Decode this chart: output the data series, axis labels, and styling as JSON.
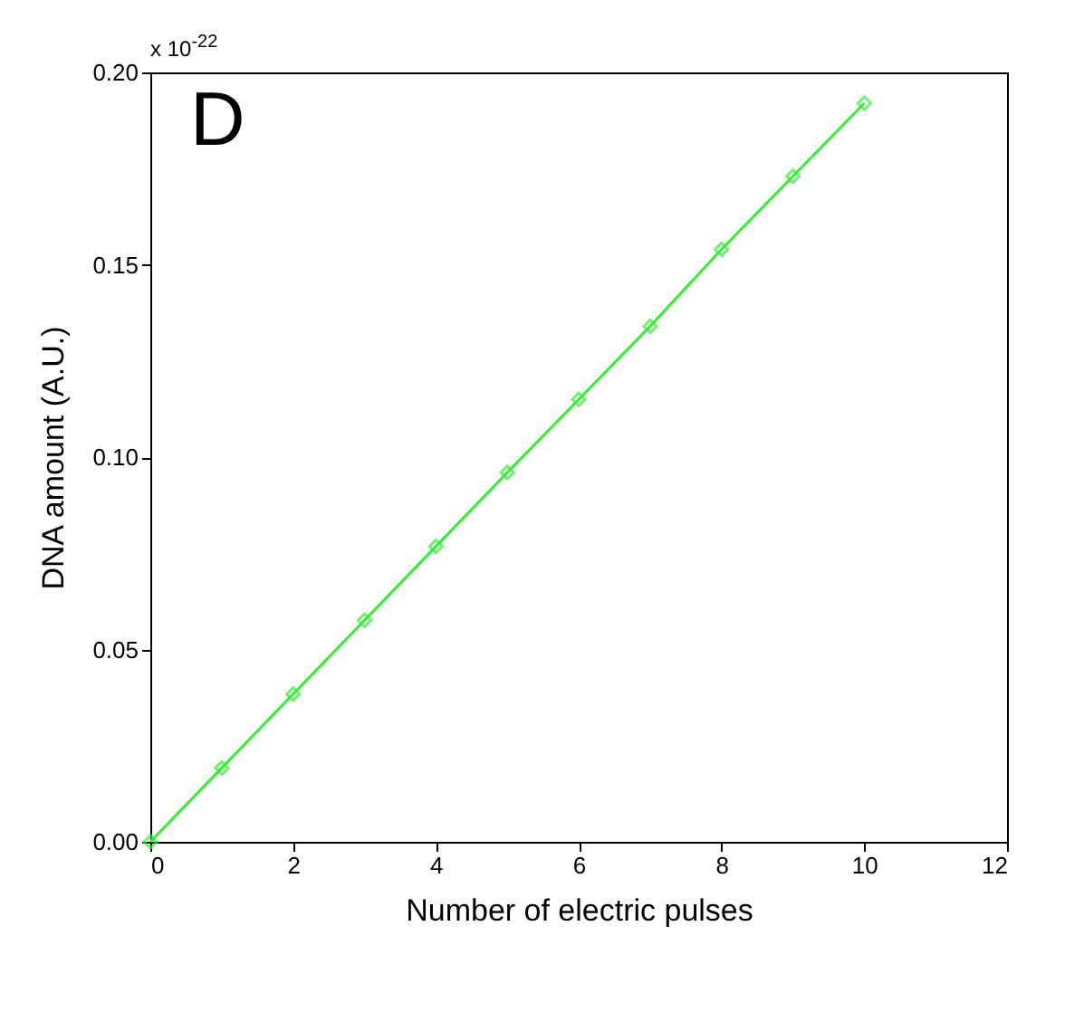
{
  "chart_data": {
    "type": "line",
    "xlabel": "Number of electric pulses",
    "ylabel": "DNA amount (A.U.)",
    "annotations": [
      "x 10$^{-22}$",
      "D"
    ],
    "x": [
      0,
      1,
      2,
      3,
      4,
      5,
      6,
      7,
      8,
      9,
      10
    ],
    "series": [
      {
        "color": "#33ee33",
        "values": [
          0,
          0.0192,
          0.0384,
          0.0576,
          0.0768,
          0.096,
          0.115,
          0.134,
          0.154,
          0.173,
          0.192
        ]
      }
    ],
    "xlim": [
      0,
      12
    ],
    "xticks": [
      0,
      2,
      4,
      6,
      8,
      10,
      12
    ],
    "ylim": [
      0,
      0.2
    ],
    "yticks": [
      {
        "value": 0,
        "label": "0.00"
      },
      {
        "value": 0.05,
        "label": "0.05"
      },
      {
        "value": 0.1,
        "label": "0.10"
      },
      {
        "value": 0.15,
        "label": "0.15"
      },
      {
        "value": 0.2,
        "label": "0.20"
      }
    ],
    "marker": "diamond",
    "line_style": "solid",
    "grid": false
  }
}
